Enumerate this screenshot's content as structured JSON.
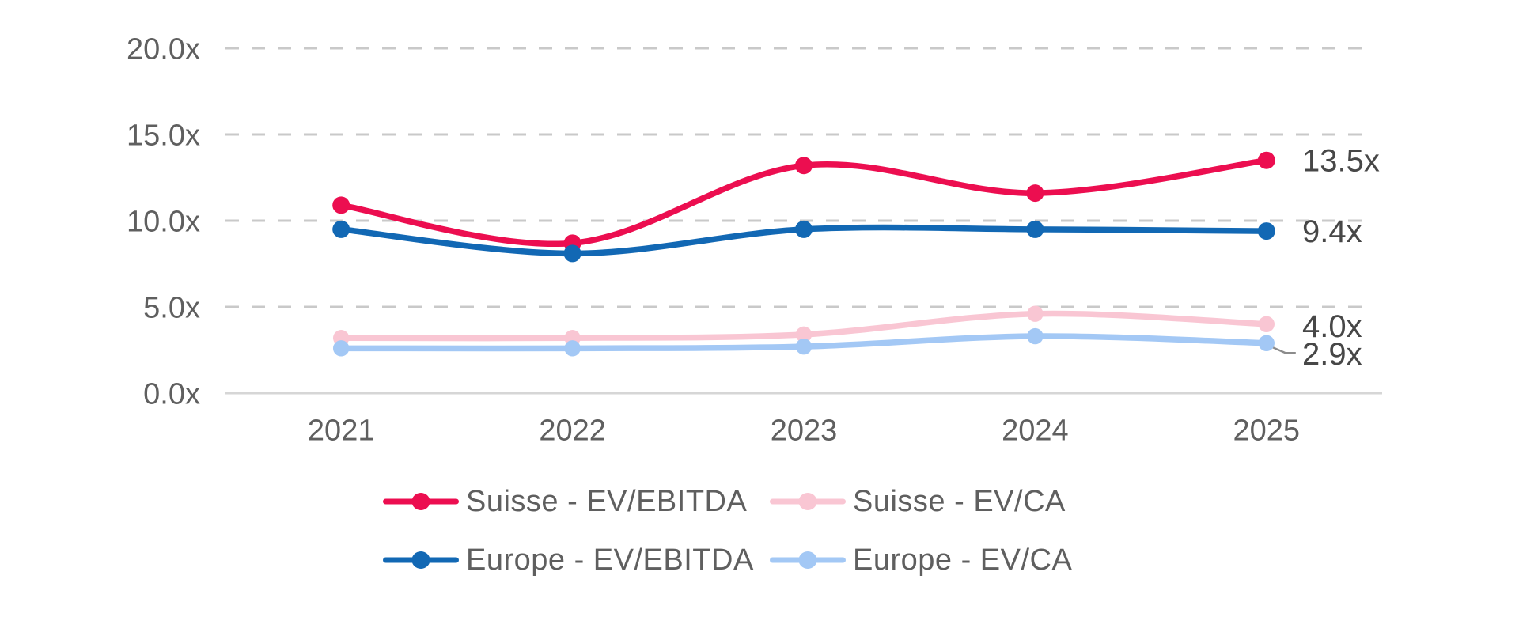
{
  "chart_data": {
    "type": "line",
    "title": "",
    "categories": [
      "2021",
      "2022",
      "2023",
      "2024",
      "2025"
    ],
    "series": [
      {
        "name": "Suisse - EV/EBITDA",
        "color": "#EC0E50",
        "values": [
          10.9,
          8.7,
          13.2,
          11.6,
          13.5
        ],
        "end_label": "13.5x"
      },
      {
        "name": "Suisse - EV/CA",
        "color": "#F9C6D3",
        "values": [
          3.2,
          3.2,
          3.4,
          4.6,
          4.0
        ],
        "end_label": "4.0x"
      },
      {
        "name": "Europe - EV/EBITDA",
        "color": "#1268B4",
        "values": [
          9.5,
          8.1,
          9.5,
          9.5,
          9.4
        ],
        "end_label": "9.4x"
      },
      {
        "name": "Europe - EV/CA",
        "color": "#A3C8F5",
        "values": [
          2.6,
          2.6,
          2.7,
          3.3,
          2.9
        ],
        "end_label": "2.9x"
      }
    ],
    "y_axis": {
      "ticks": [
        {
          "label": "20.0x",
          "value": 20
        },
        {
          "label": "15.0x",
          "value": 15
        },
        {
          "label": "10.0x",
          "value": 10
        },
        {
          "label": "5.0x",
          "value": 5
        },
        {
          "label": "0.0x",
          "value": 0
        }
      ],
      "lim": [
        0,
        20
      ]
    },
    "xlabel": "",
    "ylabel": "",
    "grid": {
      "horizontal": true,
      "style": "dashed",
      "color": "#C9C9C9"
    },
    "axis_line_color": "#D6D6D6",
    "tick_text_color": "#5F5F5F",
    "end_label_color": "#474747",
    "leader_line_color": "#8C8C8C",
    "line_smoothing": "smooth",
    "legend_position": "bottom"
  }
}
